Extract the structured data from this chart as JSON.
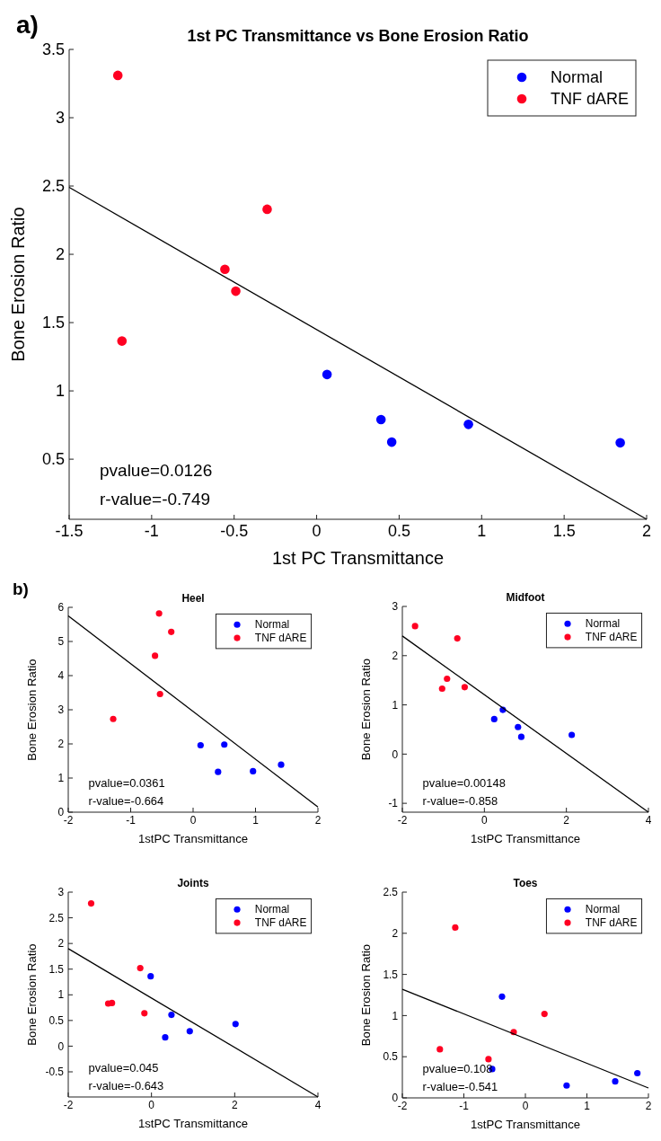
{
  "chart_data": [
    {
      "type": "scatter",
      "title": "1st PC Transmittance vs Bone Erosion Ratio",
      "xlabel": "1st PC Transmittance",
      "ylabel": "Bone Erosion Ratio",
      "xlim": [
        -1.5,
        2
      ],
      "ylim": [
        0.06,
        3.5
      ],
      "xticks": [
        -1.5,
        -1,
        -0.5,
        0,
        0.5,
        1,
        1.5,
        2
      ],
      "yticks": [
        0.5,
        1,
        1.5,
        2,
        2.5,
        3,
        3.5
      ],
      "legend": "top right",
      "marker": "circle",
      "grid": false,
      "annotations": [
        "a)",
        "pvalue=0.0126",
        "r-value=-0.749"
      ],
      "series": [
        {
          "name": "Normal",
          "color": "#0000ff",
          "x": [
            0.063,
            0.39,
            0.455,
            0.92,
            1.84
          ],
          "values": [
            1.12,
            0.79,
            0.625,
            0.755,
            0.62
          ]
        },
        {
          "name": "TNF dARE",
          "color": "#ff0022",
          "x": [
            -1.205,
            -1.18,
            -0.556,
            -0.49,
            -0.3
          ],
          "values": [
            3.31,
            1.365,
            1.89,
            1.73,
            2.33
          ]
        },
        {
          "type": "line",
          "color": "#000000",
          "marker": "none",
          "x": [
            -1.5,
            2
          ],
          "values": [
            2.49,
            0.06
          ]
        }
      ]
    },
    {
      "type": "scatter",
      "title": "Heel",
      "xlabel": "1stPC Transmittance",
      "ylabel": "Bone Erosion Ratio",
      "xlim": [
        -2,
        2
      ],
      "ylim": [
        0,
        6
      ],
      "xticks": [
        -2,
        -1,
        0,
        1,
        2
      ],
      "yticks": [
        0,
        1,
        2,
        3,
        4,
        5,
        6
      ],
      "legend": "top right",
      "marker": "circle",
      "grid": false,
      "annotations": [
        "b)",
        "pvalue=0.0361",
        "r-value=-0.664"
      ],
      "series": [
        {
          "name": "Normal",
          "color": "#0000ff",
          "x": [
            0.12,
            0.5,
            0.4,
            0.96,
            1.41
          ],
          "values": [
            1.96,
            1.98,
            1.18,
            1.2,
            1.39
          ]
        },
        {
          "name": "TNF dARE",
          "color": "#ff0022",
          "x": [
            -0.545,
            -0.35,
            -0.61,
            -0.53,
            -1.28
          ],
          "values": [
            5.82,
            5.28,
            4.58,
            3.46,
            2.73
          ]
        },
        {
          "type": "line",
          "color": "#000000",
          "marker": "none",
          "x": [
            -2,
            2
          ],
          "values": [
            5.75,
            0.15
          ]
        }
      ]
    },
    {
      "type": "scatter",
      "title": "Midfoot",
      "xlabel": "1stPC Transmittance",
      "ylabel": "Bone Erosion Ratio",
      "xlim": [
        -2,
        4
      ],
      "ylim": [
        -1.18,
        3
      ],
      "xticks": [
        -2,
        0,
        2,
        4
      ],
      "yticks": [
        -1,
        0,
        1,
        2,
        3
      ],
      "legend": "top right",
      "marker": "circle",
      "grid": false,
      "annotations": [
        "pvalue=0.00148",
        "r-value=-0.858"
      ],
      "series": [
        {
          "name": "Normal",
          "color": "#0000ff",
          "x": [
            0.45,
            0.24,
            0.82,
            0.9,
            2.13
          ],
          "values": [
            0.9,
            0.71,
            0.55,
            0.35,
            0.39
          ]
        },
        {
          "name": "TNF dARE",
          "color": "#ff0022",
          "x": [
            -1.69,
            -0.66,
            -0.91,
            -1.03,
            -0.48
          ],
          "values": [
            2.6,
            2.35,
            1.53,
            1.33,
            1.36
          ]
        },
        {
          "type": "line",
          "color": "#000000",
          "marker": "none",
          "x": [
            -2,
            4
          ],
          "values": [
            2.4,
            -1.18
          ]
        }
      ]
    },
    {
      "type": "scatter",
      "title": "Joints",
      "xlabel": "1stPC Transmittance",
      "ylabel": "Bone Erosion Ratio",
      "xlim": [
        -2,
        4
      ],
      "ylim": [
        -0.99,
        3
      ],
      "xticks": [
        -2,
        0,
        2,
        4
      ],
      "yticks": [
        -0.5,
        0,
        0.5,
        1,
        1.5,
        2,
        2.5,
        3
      ],
      "legend": "top right",
      "marker": "circle",
      "grid": false,
      "annotations": [
        "pvalue=0.045",
        "r-value=-0.643"
      ],
      "series": [
        {
          "name": "Normal",
          "color": "#0000ff",
          "x": [
            -0.02,
            0.48,
            0.33,
            0.92,
            2.02
          ],
          "values": [
            1.36,
            0.61,
            0.17,
            0.29,
            0.43
          ]
        },
        {
          "name": "TNF dARE",
          "color": "#ff0022",
          "x": [
            -1.45,
            -1.04,
            -0.95,
            -0.27,
            -0.17
          ],
          "values": [
            2.78,
            0.83,
            0.84,
            1.52,
            0.64
          ]
        },
        {
          "type": "line",
          "color": "#000000",
          "marker": "none",
          "x": [
            -2,
            4
          ],
          "values": [
            1.9,
            -0.99
          ]
        }
      ]
    },
    {
      "type": "scatter",
      "title": "Toes",
      "xlabel": "1stPC Transmittance",
      "ylabel": "Bone Erosion Ratio",
      "xlim": [
        -2,
        2
      ],
      "ylim": [
        0,
        2.5
      ],
      "xticks": [
        -2,
        -1,
        0,
        1,
        2
      ],
      "yticks": [
        0,
        0.5,
        1,
        1.5,
        2,
        2.5
      ],
      "legend": "top right",
      "marker": "circle",
      "grid": false,
      "annotations": [
        "pvalue=0.108",
        "r-value=-0.541"
      ],
      "series": [
        {
          "name": "Normal",
          "color": "#0000ff",
          "x": [
            -0.38,
            -0.54,
            0.67,
            1.46,
            1.82
          ],
          "values": [
            1.23,
            0.35,
            0.15,
            0.2,
            0.3
          ]
        },
        {
          "name": "TNF dARE",
          "color": "#ff0022",
          "x": [
            -1.14,
            -1.39,
            -0.6,
            -0.19,
            0.31
          ],
          "values": [
            2.07,
            0.59,
            0.47,
            0.8,
            1.02
          ]
        },
        {
          "type": "line",
          "color": "#000000",
          "marker": "none",
          "x": [
            -2,
            2
          ],
          "values": [
            1.32,
            0.12
          ]
        }
      ]
    }
  ]
}
